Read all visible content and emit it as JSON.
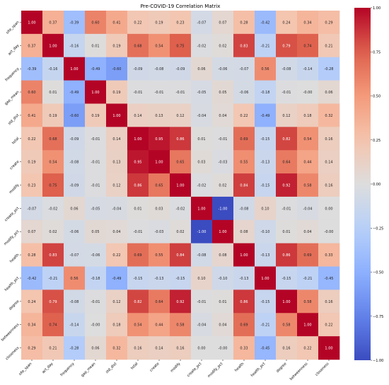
{
  "chart_data": {
    "type": "heatmap",
    "title": "Pre-COVID-19 Correlation Matrix",
    "xlabel": "",
    "ylabel": "",
    "labels": [
      "site_span",
      "act_day",
      "frequency",
      "gap_mean",
      "std_dist",
      "total",
      "create",
      "modify",
      "create_pct",
      "modify_pct",
      "health",
      "health_pct",
      "degree",
      "betweenness",
      "closeness"
    ],
    "values": [
      [
        1.0,
        0.37,
        -0.39,
        0.6,
        0.41,
        0.22,
        0.19,
        0.23,
        -0.07,
        0.07,
        0.28,
        -0.42,
        0.24,
        0.34,
        0.29
      ],
      [
        0.37,
        1.0,
        -0.16,
        0.01,
        0.19,
        0.68,
        0.54,
        0.75,
        -0.02,
        0.02,
        0.83,
        -0.21,
        0.79,
        0.74,
        0.21
      ],
      [
        -0.39,
        -0.16,
        1.0,
        -0.49,
        -0.6,
        -0.09,
        -0.08,
        -0.09,
        0.06,
        -0.06,
        -0.07,
        0.56,
        -0.08,
        -0.14,
        -0.28
      ],
      [
        0.6,
        0.01,
        -0.49,
        1.0,
        0.19,
        -0.01,
        -0.01,
        -0.01,
        -0.05,
        0.05,
        -0.06,
        -0.18,
        -0.01,
        -0.0,
        0.06
      ],
      [
        0.41,
        0.19,
        -0.6,
        0.19,
        1.0,
        0.14,
        0.13,
        0.12,
        -0.04,
        0.04,
        0.22,
        -0.49,
        0.12,
        0.18,
        0.32
      ],
      [
        0.22,
        0.68,
        -0.09,
        -0.01,
        0.14,
        1.0,
        0.95,
        0.86,
        0.01,
        -0.01,
        0.69,
        -0.15,
        0.82,
        0.54,
        0.16
      ],
      [
        0.19,
        0.54,
        -0.08,
        -0.01,
        0.13,
        0.95,
        1.0,
        0.65,
        0.03,
        -0.03,
        0.55,
        -0.13,
        0.64,
        0.44,
        0.14
      ],
      [
        0.23,
        0.75,
        -0.09,
        -0.01,
        0.12,
        0.86,
        0.65,
        1.0,
        -0.02,
        0.02,
        0.84,
        -0.15,
        0.92,
        0.58,
        0.16
      ],
      [
        -0.07,
        -0.02,
        0.06,
        -0.05,
        -0.04,
        0.01,
        0.03,
        -0.02,
        1.0,
        -1.0,
        -0.08,
        0.1,
        -0.01,
        -0.04,
        0.0
      ],
      [
        0.07,
        0.02,
        -0.06,
        0.05,
        0.04,
        -0.01,
        -0.03,
        0.02,
        -1.0,
        1.0,
        0.08,
        -0.1,
        0.01,
        0.04,
        -0.0
      ],
      [
        0.28,
        0.83,
        -0.07,
        -0.06,
        0.22,
        0.69,
        0.55,
        0.84,
        -0.08,
        0.08,
        1.0,
        -0.13,
        0.86,
        0.69,
        0.33
      ],
      [
        -0.42,
        -0.21,
        0.56,
        -0.18,
        -0.49,
        -0.15,
        -0.13,
        -0.15,
        0.1,
        -0.1,
        -0.13,
        1.0,
        -0.15,
        -0.21,
        -0.45
      ],
      [
        0.24,
        0.79,
        -0.08,
        -0.01,
        0.12,
        0.82,
        0.64,
        0.92,
        -0.01,
        0.01,
        0.86,
        -0.15,
        1.0,
        0.58,
        0.16
      ],
      [
        0.34,
        0.74,
        -0.14,
        -0.0,
        0.18,
        0.54,
        0.44,
        0.58,
        -0.04,
        0.04,
        0.69,
        -0.21,
        0.58,
        1.0,
        0.22
      ],
      [
        0.29,
        0.21,
        -0.28,
        0.06,
        0.32,
        0.16,
        0.14,
        0.16,
        0.0,
        -0.0,
        0.33,
        -0.45,
        0.16,
        0.22,
        1.0
      ]
    ],
    "vmin": -1.0,
    "vmax": 1.0,
    "colormap": "coolwarm",
    "colorbar_ticks": [
      1.0,
      0.75,
      0.5,
      0.25,
      0.0,
      -0.25,
      -0.5,
      -0.75,
      -1.0
    ],
    "colorbar_tick_labels": [
      "1.00",
      "0.75",
      "0.50",
      "0.25",
      "0.00",
      "−0.25",
      "−0.50",
      "−0.75",
      "−1.00"
    ],
    "colors": {
      "low": "#3b4cc0",
      "mid": "#dddddd",
      "high": "#b40426"
    }
  }
}
